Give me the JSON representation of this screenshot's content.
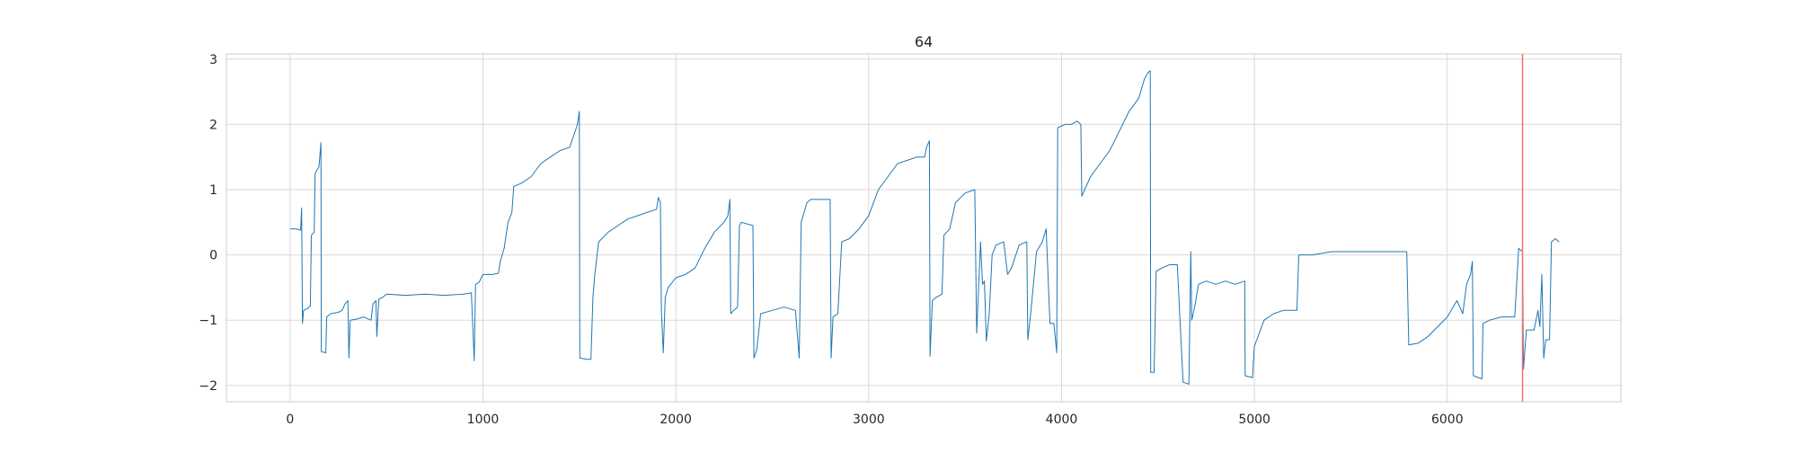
{
  "chart_data": {
    "type": "line",
    "title": "64",
    "xlabel": "",
    "ylabel": "",
    "xlim": [
      -330,
      6900
    ],
    "ylim": [
      -2.25,
      3.08
    ],
    "x_ticks": [
      0,
      1000,
      2000,
      3000,
      4000,
      5000,
      6000
    ],
    "y_ticks": [
      -2,
      -1,
      0,
      1,
      2,
      3
    ],
    "grid": true,
    "line_color": "#1f77b4",
    "vline": {
      "x": 6390,
      "color": "#ff6b6b"
    },
    "series": [
      {
        "points": [
          [
            0,
            0.4
          ],
          [
            30,
            0.4
          ],
          [
            55,
            0.38
          ],
          [
            60,
            0.72
          ],
          [
            64,
            -1.05
          ],
          [
            70,
            -0.85
          ],
          [
            90,
            -0.82
          ],
          [
            105,
            -0.78
          ],
          [
            110,
            0.3
          ],
          [
            125,
            0.35
          ],
          [
            130,
            1.25
          ],
          [
            150,
            1.35
          ],
          [
            160,
            1.72
          ],
          [
            162,
            -1.48
          ],
          [
            185,
            -1.5
          ],
          [
            190,
            -0.95
          ],
          [
            210,
            -0.9
          ],
          [
            250,
            -0.88
          ],
          [
            270,
            -0.85
          ],
          [
            285,
            -0.75
          ],
          [
            300,
            -0.7
          ],
          [
            305,
            -1.58
          ],
          [
            312,
            -1.0
          ],
          [
            350,
            -0.98
          ],
          [
            380,
            -0.95
          ],
          [
            420,
            -1.0
          ],
          [
            430,
            -0.75
          ],
          [
            445,
            -0.7
          ],
          [
            450,
            -1.25
          ],
          [
            460,
            -0.68
          ],
          [
            480,
            -0.65
          ],
          [
            500,
            -0.6
          ],
          [
            600,
            -0.62
          ],
          [
            700,
            -0.6
          ],
          [
            800,
            -0.62
          ],
          [
            900,
            -0.6
          ],
          [
            940,
            -0.58
          ],
          [
            955,
            -1.62
          ],
          [
            962,
            -0.45
          ],
          [
            980,
            -0.42
          ],
          [
            1000,
            -0.3
          ],
          [
            1050,
            -0.3
          ],
          [
            1080,
            -0.28
          ],
          [
            1090,
            -0.1
          ],
          [
            1110,
            0.1
          ],
          [
            1130,
            0.5
          ],
          [
            1150,
            0.65
          ],
          [
            1160,
            1.05
          ],
          [
            1200,
            1.1
          ],
          [
            1250,
            1.2
          ],
          [
            1300,
            1.4
          ],
          [
            1350,
            1.5
          ],
          [
            1400,
            1.6
          ],
          [
            1450,
            1.65
          ],
          [
            1490,
            2.0
          ],
          [
            1500,
            2.2
          ],
          [
            1502,
            -1.58
          ],
          [
            1540,
            -1.6
          ],
          [
            1560,
            -1.6
          ],
          [
            1570,
            -0.65
          ],
          [
            1580,
            -0.3
          ],
          [
            1600,
            0.2
          ],
          [
            1650,
            0.35
          ],
          [
            1700,
            0.45
          ],
          [
            1750,
            0.55
          ],
          [
            1800,
            0.6
          ],
          [
            1850,
            0.65
          ],
          [
            1900,
            0.7
          ],
          [
            1910,
            0.88
          ],
          [
            1920,
            0.8
          ],
          [
            1925,
            -0.85
          ],
          [
            1935,
            -1.5
          ],
          [
            1945,
            -0.65
          ],
          [
            1960,
            -0.5
          ],
          [
            2000,
            -0.35
          ],
          [
            2050,
            -0.3
          ],
          [
            2100,
            -0.2
          ],
          [
            2150,
            0.1
          ],
          [
            2200,
            0.35
          ],
          [
            2250,
            0.5
          ],
          [
            2270,
            0.6
          ],
          [
            2280,
            0.85
          ],
          [
            2285,
            -0.9
          ],
          [
            2300,
            -0.85
          ],
          [
            2320,
            -0.8
          ],
          [
            2330,
            0.45
          ],
          [
            2340,
            0.5
          ],
          [
            2400,
            0.45
          ],
          [
            2405,
            -1.58
          ],
          [
            2420,
            -1.45
          ],
          [
            2440,
            -0.9
          ],
          [
            2500,
            -0.85
          ],
          [
            2560,
            -0.8
          ],
          [
            2620,
            -0.85
          ],
          [
            2640,
            -1.58
          ],
          [
            2650,
            0.5
          ],
          [
            2680,
            0.8
          ],
          [
            2700,
            0.85
          ],
          [
            2800,
            0.85
          ],
          [
            2805,
            -1.58
          ],
          [
            2815,
            -0.95
          ],
          [
            2840,
            -0.9
          ],
          [
            2860,
            0.2
          ],
          [
            2900,
            0.25
          ],
          [
            2950,
            0.4
          ],
          [
            3000,
            0.6
          ],
          [
            3050,
            1.0
          ],
          [
            3100,
            1.2
          ],
          [
            3150,
            1.4
          ],
          [
            3200,
            1.45
          ],
          [
            3250,
            1.5
          ],
          [
            3290,
            1.5
          ],
          [
            3300,
            1.65
          ],
          [
            3315,
            1.75
          ],
          [
            3318,
            -1.55
          ],
          [
            3330,
            -0.7
          ],
          [
            3350,
            -0.65
          ],
          [
            3380,
            -0.6
          ],
          [
            3390,
            0.3
          ],
          [
            3420,
            0.4
          ],
          [
            3450,
            0.8
          ],
          [
            3500,
            0.95
          ],
          [
            3550,
            1.0
          ],
          [
            3560,
            -1.2
          ],
          [
            3580,
            0.2
          ],
          [
            3590,
            -0.45
          ],
          [
            3600,
            -0.4
          ],
          [
            3610,
            -1.32
          ],
          [
            3625,
            -0.9
          ],
          [
            3640,
            0.0
          ],
          [
            3660,
            0.15
          ],
          [
            3700,
            0.2
          ],
          [
            3720,
            -0.3
          ],
          [
            3740,
            -0.2
          ],
          [
            3780,
            0.15
          ],
          [
            3820,
            0.2
          ],
          [
            3825,
            -1.3
          ],
          [
            3840,
            -0.9
          ],
          [
            3870,
            0.05
          ],
          [
            3900,
            0.2
          ],
          [
            3920,
            0.4
          ],
          [
            3940,
            -1.05
          ],
          [
            3960,
            -1.05
          ],
          [
            3975,
            -1.5
          ],
          [
            3980,
            1.95
          ],
          [
            4020,
            2.0
          ],
          [
            4050,
            2.0
          ],
          [
            4080,
            2.05
          ],
          [
            4100,
            2.0
          ],
          [
            4105,
            0.9
          ],
          [
            4150,
            1.2
          ],
          [
            4200,
            1.4
          ],
          [
            4250,
            1.6
          ],
          [
            4300,
            1.9
          ],
          [
            4350,
            2.2
          ],
          [
            4400,
            2.4
          ],
          [
            4430,
            2.7
          ],
          [
            4450,
            2.8
          ],
          [
            4460,
            2.82
          ],
          [
            4462,
            -1.8
          ],
          [
            4480,
            -1.8
          ],
          [
            4490,
            -0.25
          ],
          [
            4520,
            -0.2
          ],
          [
            4560,
            -0.15
          ],
          [
            4600,
            -0.15
          ],
          [
            4630,
            -1.95
          ],
          [
            4660,
            -1.98
          ],
          [
            4670,
            0.05
          ],
          [
            4675,
            -1.0
          ],
          [
            4690,
            -0.8
          ],
          [
            4710,
            -0.45
          ],
          [
            4750,
            -0.4
          ],
          [
            4800,
            -0.45
          ],
          [
            4850,
            -0.4
          ],
          [
            4900,
            -0.45
          ],
          [
            4950,
            -0.4
          ],
          [
            4952,
            -1.85
          ],
          [
            4990,
            -1.88
          ],
          [
            5000,
            -1.4
          ],
          [
            5050,
            -1.0
          ],
          [
            5100,
            -0.9
          ],
          [
            5150,
            -0.85
          ],
          [
            5220,
            -0.85
          ],
          [
            5230,
            0.0
          ],
          [
            5300,
            0.0
          ],
          [
            5400,
            0.05
          ],
          [
            5500,
            0.05
          ],
          [
            5600,
            0.05
          ],
          [
            5700,
            0.05
          ],
          [
            5790,
            0.05
          ],
          [
            5800,
            -1.38
          ],
          [
            5850,
            -1.35
          ],
          [
            5900,
            -1.25
          ],
          [
            5950,
            -1.1
          ],
          [
            6000,
            -0.95
          ],
          [
            6050,
            -0.7
          ],
          [
            6080,
            -0.9
          ],
          [
            6100,
            -0.45
          ],
          [
            6120,
            -0.3
          ],
          [
            6130,
            -0.1
          ],
          [
            6135,
            -1.85
          ],
          [
            6180,
            -1.9
          ],
          [
            6185,
            -1.05
          ],
          [
            6220,
            -1.0
          ],
          [
            6280,
            -0.95
          ],
          [
            6350,
            -0.95
          ],
          [
            6370,
            0.1
          ],
          [
            6390,
            0.05
          ],
          [
            6395,
            -1.75
          ],
          [
            6410,
            -1.15
          ],
          [
            6450,
            -1.15
          ],
          [
            6470,
            -0.85
          ],
          [
            6480,
            -1.1
          ],
          [
            6490,
            -0.3
          ],
          [
            6500,
            -1.58
          ],
          [
            6510,
            -1.3
          ],
          [
            6530,
            -1.3
          ],
          [
            6540,
            0.2
          ],
          [
            6560,
            0.25
          ],
          [
            6580,
            0.2
          ]
        ]
      }
    ]
  }
}
